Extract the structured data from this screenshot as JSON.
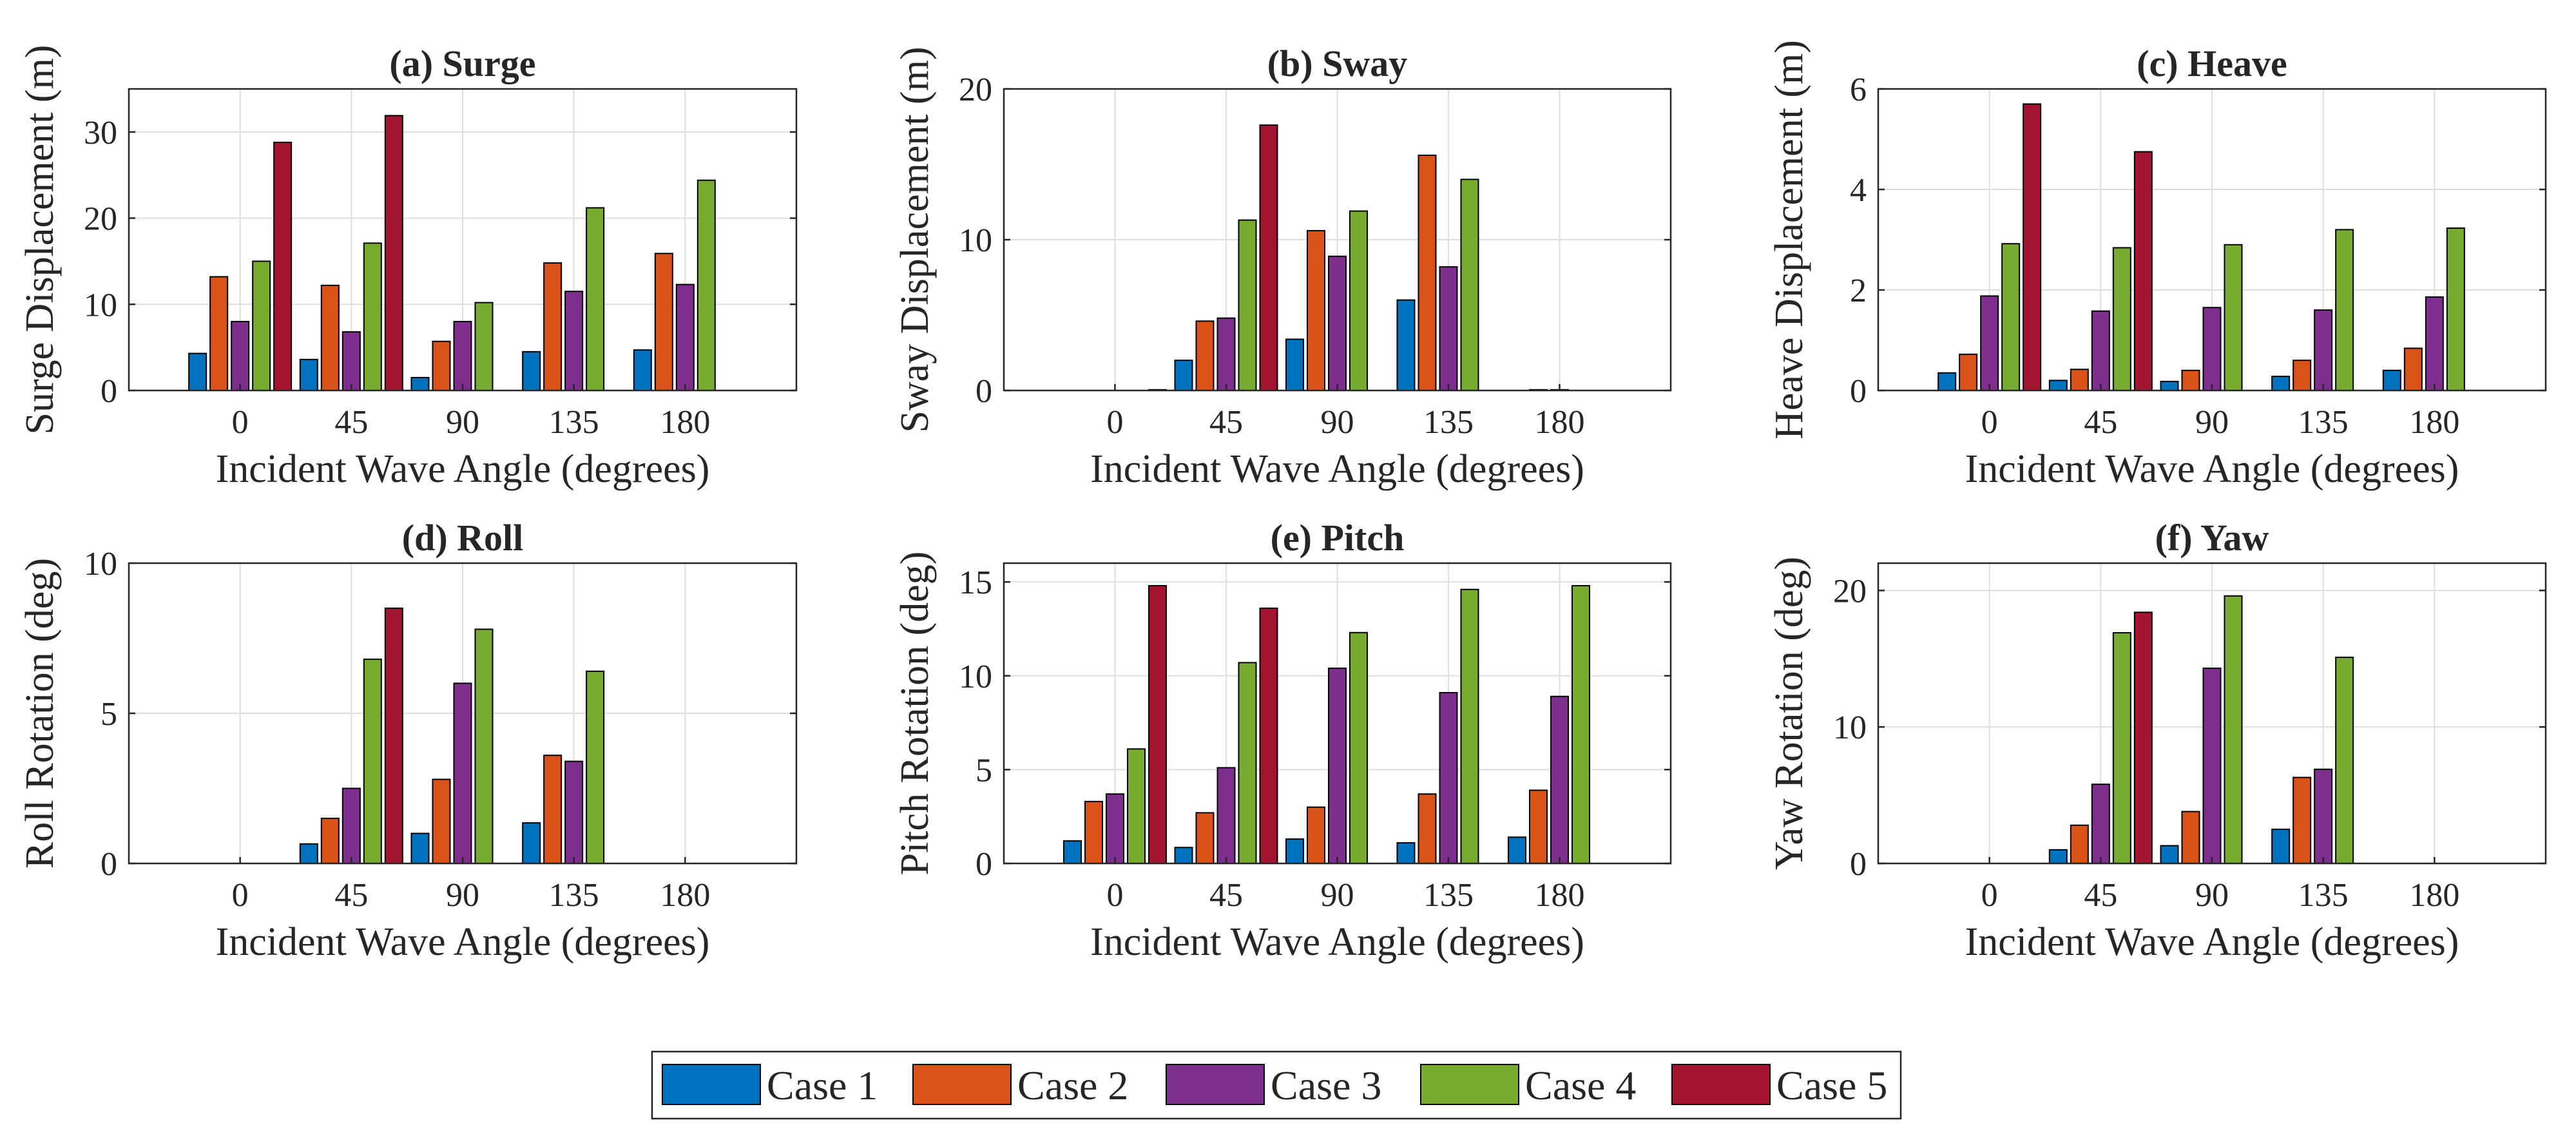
{
  "chart_data": [
    {
      "type": "bar",
      "title": "(a) Surge",
      "xlabel": "Incident Wave Angle (degrees)",
      "ylabel": "Surge Displacement (m)",
      "categories": [
        "0",
        "45",
        "90",
        "135",
        "180"
      ],
      "ylim": [
        0,
        35
      ],
      "yticks": [
        0,
        10,
        20,
        30
      ],
      "grid": true,
      "series": [
        {
          "name": "Case 1",
          "values": [
            4.3,
            3.6,
            1.5,
            4.5,
            4.7
          ]
        },
        {
          "name": "Case 2",
          "values": [
            13.2,
            12.2,
            5.7,
            14.8,
            15.9
          ]
        },
        {
          "name": "Case 3",
          "values": [
            8.0,
            6.8,
            8.0,
            11.5,
            12.3
          ]
        },
        {
          "name": "Case 4",
          "values": [
            15.0,
            17.1,
            10.2,
            21.2,
            24.4
          ]
        },
        {
          "name": "Case 5",
          "values": [
            28.8,
            31.9,
            0,
            0,
            0
          ]
        }
      ]
    },
    {
      "type": "bar",
      "title": "(b) Sway",
      "xlabel": "Incident Wave Angle (degrees)",
      "ylabel": "Sway Displacement (m)",
      "categories": [
        "0",
        "45",
        "90",
        "135",
        "180"
      ],
      "ylim": [
        0,
        20
      ],
      "yticks": [
        0,
        10,
        20
      ],
      "grid": true,
      "series": [
        {
          "name": "Case 1",
          "values": [
            0,
            2.0,
            3.4,
            6.0,
            0
          ]
        },
        {
          "name": "Case 2",
          "values": [
            0,
            4.6,
            10.6,
            15.6,
            0.05
          ]
        },
        {
          "name": "Case 3",
          "values": [
            0,
            4.8,
            8.9,
            8.2,
            0.05
          ]
        },
        {
          "name": "Case 4",
          "values": [
            0,
            11.3,
            11.9,
            14.0,
            0
          ]
        },
        {
          "name": "Case 5",
          "values": [
            0.05,
            17.6,
            0,
            0,
            0
          ]
        }
      ]
    },
    {
      "type": "bar",
      "title": "(c) Heave",
      "xlabel": "Incident Wave Angle (degrees)",
      "ylabel": "Heave Displacement (m)",
      "categories": [
        "0",
        "45",
        "90",
        "135",
        "180"
      ],
      "ylim": [
        0,
        6
      ],
      "yticks": [
        0,
        2,
        4,
        6
      ],
      "grid": true,
      "series": [
        {
          "name": "Case 1",
          "values": [
            0.35,
            0.2,
            0.18,
            0.28,
            0.4
          ]
        },
        {
          "name": "Case 2",
          "values": [
            0.72,
            0.42,
            0.4,
            0.6,
            0.84
          ]
        },
        {
          "name": "Case 3",
          "values": [
            1.88,
            1.58,
            1.65,
            1.6,
            1.86
          ]
        },
        {
          "name": "Case 4",
          "values": [
            2.92,
            2.84,
            2.9,
            3.2,
            3.23
          ]
        },
        {
          "name": "Case 5",
          "values": [
            5.7,
            4.75,
            0,
            0,
            0
          ]
        }
      ]
    },
    {
      "type": "bar",
      "title": "(d) Roll",
      "xlabel": "Incident Wave Angle (degrees)",
      "ylabel": "Roll Rotation (deg)",
      "categories": [
        "0",
        "45",
        "90",
        "135",
        "180"
      ],
      "ylim": [
        0,
        10
      ],
      "yticks": [
        0,
        5,
        10
      ],
      "grid": true,
      "series": [
        {
          "name": "Case 1",
          "values": [
            0,
            0.65,
            1.0,
            1.35,
            0
          ]
        },
        {
          "name": "Case 2",
          "values": [
            0,
            1.5,
            2.8,
            3.6,
            0
          ]
        },
        {
          "name": "Case 3",
          "values": [
            0,
            2.5,
            6.0,
            3.4,
            0
          ]
        },
        {
          "name": "Case 4",
          "values": [
            0,
            6.8,
            7.8,
            6.4,
            0
          ]
        },
        {
          "name": "Case 5",
          "values": [
            0,
            8.5,
            0,
            0,
            0
          ]
        }
      ]
    },
    {
      "type": "bar",
      "title": "(e) Pitch",
      "xlabel": "Incident Wave Angle (degrees)",
      "ylabel": "Pitch Rotation (deg)",
      "categories": [
        "0",
        "45",
        "90",
        "135",
        "180"
      ],
      "ylim": [
        0,
        16
      ],
      "yticks": [
        0,
        5,
        10,
        15
      ],
      "grid": true,
      "series": [
        {
          "name": "Case 1",
          "values": [
            1.2,
            0.85,
            1.3,
            1.1,
            1.4
          ]
        },
        {
          "name": "Case 2",
          "values": [
            3.3,
            2.7,
            3.0,
            3.7,
            3.9
          ]
        },
        {
          "name": "Case 3",
          "values": [
            3.7,
            5.1,
            10.4,
            9.1,
            8.9
          ]
        },
        {
          "name": "Case 4",
          "values": [
            6.1,
            10.7,
            12.3,
            14.6,
            14.8
          ]
        },
        {
          "name": "Case 5",
          "values": [
            14.8,
            13.6,
            0,
            0,
            0
          ]
        }
      ]
    },
    {
      "type": "bar",
      "title": "(f) Yaw",
      "xlabel": "Incident Wave Angle (degrees)",
      "ylabel": "Yaw Rotation (deg)",
      "categories": [
        "0",
        "45",
        "90",
        "135",
        "180"
      ],
      "ylim": [
        0,
        22
      ],
      "yticks": [
        0,
        10,
        20
      ],
      "grid": true,
      "series": [
        {
          "name": "Case 1",
          "values": [
            0,
            1.0,
            1.3,
            2.5,
            0
          ]
        },
        {
          "name": "Case 2",
          "values": [
            0,
            2.8,
            3.8,
            6.3,
            0
          ]
        },
        {
          "name": "Case 3",
          "values": [
            0,
            5.8,
            14.3,
            6.9,
            0
          ]
        },
        {
          "name": "Case 4",
          "values": [
            0,
            16.9,
            19.6,
            15.1,
            0
          ]
        },
        {
          "name": "Case 5",
          "values": [
            0,
            18.4,
            0,
            0,
            0
          ]
        }
      ]
    }
  ],
  "legend": {
    "placement": "bottom-center",
    "entries": [
      "Case 1",
      "Case 2",
      "Case 3",
      "Case 4",
      "Case 5"
    ]
  },
  "colors": {
    "Case 1": "#0072BD",
    "Case 2": "#D95319",
    "Case 3": "#7E2F8E",
    "Case 4": "#77AC30",
    "Case 5": "#A2142F",
    "axis": "#262626",
    "grid": "#DFDFDF"
  }
}
